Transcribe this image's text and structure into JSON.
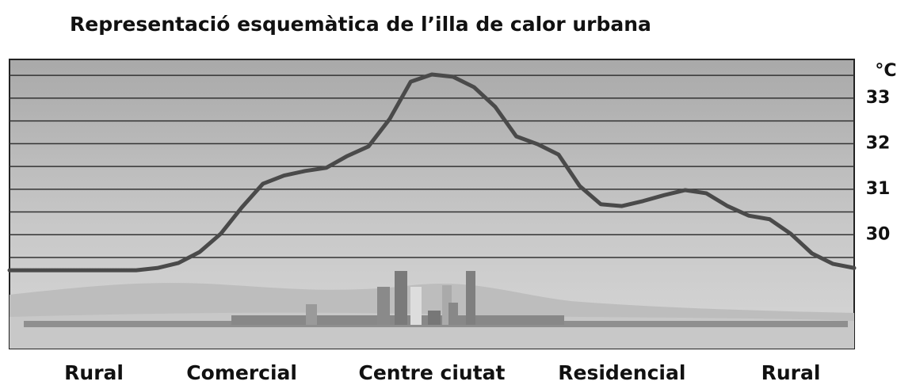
{
  "chart_data": {
    "type": "line",
    "title": "Representació esquemàtica de l’illa de calor urbana",
    "y_label": "°C",
    "categories": [
      null,
      null,
      null,
      null,
      "Rural",
      null,
      null,
      null,
      null,
      null,
      null,
      "Comercial",
      null,
      null,
      null,
      null,
      null,
      null,
      null,
      null,
      "Centre ciutat",
      null,
      null,
      null,
      null,
      null,
      null,
      null,
      null,
      "Residencial",
      null,
      null,
      null,
      null,
      null,
      null,
      null,
      "Rural",
      null,
      null,
      null
    ],
    "series": [
      {
        "name": null,
        "color": "#4a4a4a",
        "values": [
          29.22,
          29.22,
          29.22,
          29.22,
          29.22,
          29.22,
          29.22,
          29.27,
          29.38,
          29.62,
          30.02,
          30.6,
          31.12,
          31.3,
          31.4,
          31.47,
          31.73,
          31.94,
          32.54,
          33.36,
          33.52,
          33.47,
          33.24,
          32.81,
          32.16,
          31.99,
          31.76,
          31.07,
          30.67,
          30.63,
          30.74,
          30.87,
          30.98,
          30.91,
          30.63,
          30.42,
          30.34,
          30.02,
          29.59,
          29.36,
          29.27
        ]
      }
    ],
    "ylim": [
      27.5,
      33.85
    ],
    "yticks": [
      30,
      31,
      32,
      33
    ],
    "grid": true
  }
}
